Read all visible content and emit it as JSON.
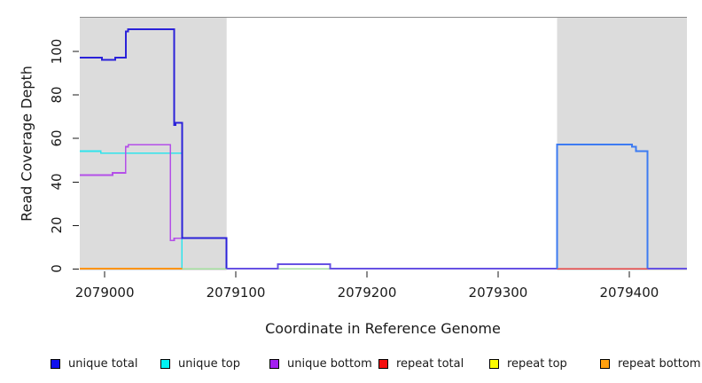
{
  "figure": {
    "xlabel": "Coordinate in Reference Genome",
    "ylabel": "Read Coverage Depth"
  },
  "chart_data": {
    "type": "line",
    "title": "",
    "xlabel": "Coordinate in Reference Genome",
    "ylabel": "Read Coverage Depth",
    "xlim": [
      2078981,
      2079444
    ],
    "ylim": [
      -1,
      115
    ],
    "grid": false,
    "legend_position": "bottom",
    "x_ticks": [
      "2079000",
      "2079100",
      "2079200",
      "2079300",
      "2079400"
    ],
    "x_tick_values": [
      2079000,
      2079100,
      2079200,
      2079300,
      2079400
    ],
    "y_ticks": [
      "0",
      "20",
      "40",
      "60",
      "80",
      "100"
    ],
    "y_tick_values": [
      0,
      20,
      40,
      60,
      80,
      100
    ],
    "plot_background": "#ffffff",
    "top_border_color": "#8c8c8c",
    "tick_color": "#1a1a1a",
    "shaded_regions": [
      {
        "name": "left-repeat-region",
        "x0": 2078981,
        "x1": 2079093,
        "color": "#dcdcdc"
      },
      {
        "name": "right-repeat-region",
        "x0": 2079345,
        "x1": 2079444,
        "color": "#dcdcdc"
      }
    ],
    "series": [
      {
        "name": "unique total",
        "color": "#1111ee",
        "step": true,
        "points": [
          [
            2078981,
            97
          ],
          [
            2078998,
            96
          ],
          [
            2079008,
            97
          ],
          [
            2079016,
            110
          ],
          [
            2079053,
            66
          ],
          [
            2079054,
            67
          ],
          [
            2079059,
            14
          ],
          [
            2079093,
            0
          ],
          [
            2079132,
            2
          ],
          [
            2079172,
            0
          ],
          [
            2079345,
            57
          ],
          [
            2079403,
            56
          ],
          [
            2079405,
            54
          ],
          [
            2079415,
            0
          ],
          [
            2079444,
            0
          ]
        ]
      },
      {
        "name": "unique top",
        "color": "#00f2f2",
        "step": true,
        "points": [
          [
            2078981,
            54
          ],
          [
            2078997,
            53
          ],
          [
            2079059,
            0
          ]
        ]
      },
      {
        "name": "unique bottom",
        "color": "#a31ff0",
        "step": true,
        "points": [
          [
            2078981,
            43
          ],
          [
            2079006,
            44
          ],
          [
            2079016,
            57
          ],
          [
            2079050,
            13
          ],
          [
            2079053,
            14
          ],
          [
            2079093,
            0
          ]
        ]
      },
      {
        "name": "repeat total",
        "color": "#f50f0f",
        "step": true,
        "points": [
          [
            2079345,
            0
          ],
          [
            2079430,
            0
          ]
        ]
      },
      {
        "name": "repeat top",
        "color": "#fcfc00",
        "step": true,
        "points": [
          [
            2079059,
            0
          ],
          [
            2079093,
            0
          ],
          [
            2079132,
            0
          ],
          [
            2079172,
            0
          ]
        ]
      },
      {
        "name": "repeat bottom",
        "color": "#ffa00f",
        "step": true,
        "points": [
          [
            2078981,
            0
          ],
          [
            2079059,
            0
          ]
        ]
      }
    ],
    "render_segments": [
      {
        "name": "unique-top-line",
        "color": "#30e4ec",
        "width": 1.6,
        "points": [
          [
            2078981,
            54
          ],
          [
            2078997,
            54
          ],
          [
            2078997,
            53
          ],
          [
            2079059,
            53
          ],
          [
            2079059,
            0
          ]
        ]
      },
      {
        "name": "unique-bottom-line",
        "color": "#b44fe8",
        "width": 1.6,
        "points": [
          [
            2078981,
            43
          ],
          [
            2079006,
            43
          ],
          [
            2079006,
            44
          ],
          [
            2079016,
            44
          ],
          [
            2079016,
            56
          ],
          [
            2079018,
            56
          ],
          [
            2079018,
            57
          ],
          [
            2079050,
            57
          ],
          [
            2079050,
            13
          ],
          [
            2079053,
            13
          ],
          [
            2079053,
            14
          ],
          [
            2079093,
            14
          ],
          [
            2079093,
            0
          ]
        ]
      },
      {
        "name": "repeat-bottom-line",
        "color": "#ff9414",
        "width": 1.8,
        "points": [
          [
            2078981,
            0
          ],
          [
            2079059,
            0
          ]
        ]
      },
      {
        "name": "repeat-top-zero-line-a",
        "color": "#a5e0a0",
        "width": 1.5,
        "points": [
          [
            2079059,
            0
          ],
          [
            2079093,
            0
          ]
        ]
      },
      {
        "name": "repeat-top-zero-line-b",
        "color": "#a5e0a0",
        "width": 1.5,
        "points": [
          [
            2079132,
            0
          ],
          [
            2079172,
            0
          ]
        ]
      },
      {
        "name": "repeat-total-line",
        "color": "#e84545",
        "width": 1.5,
        "points": [
          [
            2079345,
            0
          ],
          [
            2079430,
            0
          ]
        ]
      },
      {
        "name": "unique-total-left",
        "color": "#2b22d9",
        "width": 2,
        "points": [
          [
            2078981,
            97
          ],
          [
            2078998,
            97
          ],
          [
            2078998,
            96
          ],
          [
            2079008,
            96
          ],
          [
            2079008,
            97
          ],
          [
            2079016,
            97
          ],
          [
            2079016,
            109
          ],
          [
            2079018,
            109
          ],
          [
            2079018,
            110
          ],
          [
            2079053,
            110
          ],
          [
            2079053,
            66
          ],
          [
            2079054,
            66
          ],
          [
            2079054,
            67
          ],
          [
            2079059,
            67
          ],
          [
            2079059,
            14
          ],
          [
            2079093,
            14
          ],
          [
            2079093,
            0
          ]
        ]
      },
      {
        "name": "unique-total-mid",
        "color": "#6752e3",
        "width": 2,
        "points": [
          [
            2079093,
            0
          ],
          [
            2079132,
            0
          ],
          [
            2079132,
            2
          ],
          [
            2079172,
            2
          ],
          [
            2079172,
            0
          ],
          [
            2079345,
            0
          ]
        ]
      },
      {
        "name": "unique-total-right",
        "color": "#3d7bf2",
        "width": 2,
        "points": [
          [
            2079345,
            0
          ],
          [
            2079345,
            57
          ],
          [
            2079402,
            57
          ],
          [
            2079402,
            56
          ],
          [
            2079405,
            56
          ],
          [
            2079405,
            54
          ],
          [
            2079414,
            54
          ],
          [
            2079414,
            0
          ]
        ]
      },
      {
        "name": "unique-total-far-right",
        "color": "#6752e3",
        "width": 2,
        "points": [
          [
            2079414,
            0
          ],
          [
            2079444,
            0
          ]
        ]
      }
    ],
    "legend": [
      {
        "label": "unique total",
        "color": "#1111ee"
      },
      {
        "label": "unique top",
        "color": "#00f2f2"
      },
      {
        "label": "unique bottom",
        "color": "#a31ff0"
      },
      {
        "label": "repeat total",
        "color": "#f50f0f"
      },
      {
        "label": "repeat top",
        "color": "#fcfc00"
      },
      {
        "label": "repeat bottom",
        "color": "#ffa00f"
      }
    ]
  }
}
